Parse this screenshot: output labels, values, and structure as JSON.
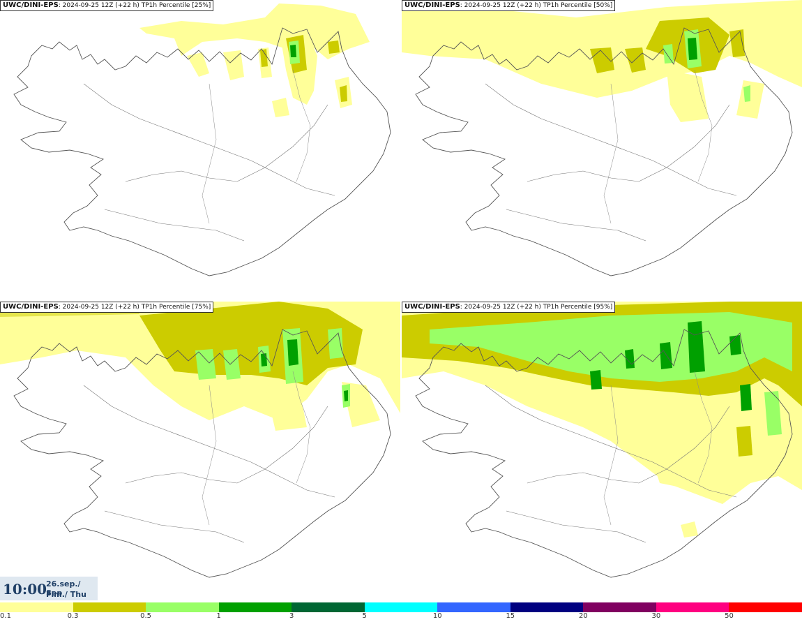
{
  "panels": [
    {
      "model": "UWC/DINI-EPS",
      "run": ": 2024-09-25 12Z (+22 h)",
      "param": " TP1h Percentile [25%]"
    },
    {
      "model": "UWC/DINI-EPS",
      "run": ": 2024-09-25 12Z (+22 h)",
      "param": " TP1h Percentile [50%]"
    },
    {
      "model": "UWC/DINI-EPS",
      "run": ": 2024-09-25 12Z (+22 h)",
      "param": " TP1h Percentile [75%]"
    },
    {
      "model": "UWC/DINI-EPS",
      "run": ": 2024-09-25 12Z (+22 h)",
      "param": " TP1h Percentile [95%]"
    }
  ],
  "valid_time": {
    "clock": "10:00",
    "date": "26.sep./ Sep",
    "weekday": "Fim./ Thu"
  },
  "legend": {
    "ticks": [
      "0.1",
      "0.3",
      "0.5",
      "1",
      "3",
      "5",
      "10",
      "15",
      "20",
      "30",
      "50"
    ],
    "colors": [
      "#ffff99",
      "#cccc00",
      "#99ff66",
      "#00a000",
      "#006633",
      "#00ffff",
      "#3366ff",
      "#000080",
      "#800060",
      "#ff0080",
      "#ff0000"
    ]
  }
}
